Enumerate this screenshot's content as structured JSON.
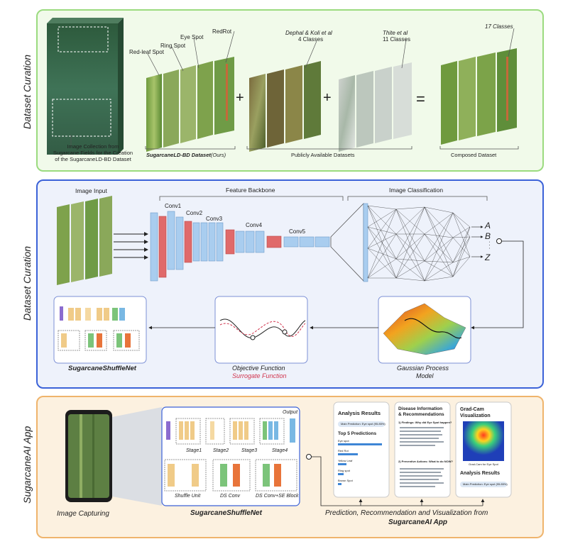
{
  "panel1": {
    "side_label": "Dataset Curation",
    "field_caption": [
      "Image Collection from",
      "Sugarcane Fields for the Creation",
      "of the SugarcaneLD-BD Dataset"
    ],
    "stack1_labels": [
      "RedRot",
      "Eye Spot",
      "Ring Spot",
      "Red-leaf Spot"
    ],
    "stack2_label_title": "Dephal & Koli et al",
    "stack2_label_classes": "4 Classes",
    "stack3_label_title": "Thite et al",
    "stack3_label_classes": "11 Classes",
    "stack4_label": "17 Classes",
    "caption_ours_bold": "SugarcaneLD-BD Dataset",
    "caption_ours_italic": "(Ours)",
    "caption_public": "Publicly Available Datasets",
    "caption_composed": "Composed Dataset",
    "plus": "+",
    "equals": "="
  },
  "panel2": {
    "side_label": "Dataset Curation",
    "image_input": "Image Input",
    "feature_backbone": "Feature Backbone",
    "image_classification": "Image Classification",
    "conv_labels": [
      "Conv1",
      "Conv2",
      "Conv3",
      "Conv4",
      "Conv5"
    ],
    "outputs": [
      "A",
      "B",
      "Z"
    ],
    "dots": ". . .",
    "net_title": "SugarcaneShuffleNet",
    "objective": "Objective Function",
    "surrogate": "Surrogate Function",
    "gp_line1": "Gaussian Process",
    "gp_line2": "Model"
  },
  "panel3": {
    "side_label": "SugarcaneAI App",
    "image_capturing": "Image Capturing",
    "net_title": "SugarcaneShuffleNet",
    "output_label": "Output",
    "stages": [
      "Stage1",
      "Stage2",
      "Stage3",
      "Stage4"
    ],
    "blocks": [
      "Shuffle Unit",
      "DS Conv",
      "DS Conv+SE Block"
    ],
    "prediction_line1": "Prediction, Recommendation and Visualization from",
    "prediction_line2": "SugarcaneAI App",
    "screen1": {
      "title": "Analysis Results",
      "pill": "Main Prediction: Eye spot (95.85%)",
      "sub": "Top 5 Predictions",
      "rows": [
        "Eye spot",
        "Red Rot",
        "Yellow Leaf",
        "Ring spot",
        "Brown Spot"
      ]
    },
    "screen2": {
      "title_line1": "Disease Information",
      "title_line2": "& Recommendations",
      "q1": "1) Findings: Why did Eye Spot happen?",
      "q2": "2) Preventive Actions: What to do NOW?"
    },
    "screen3": {
      "title_line1": "Grad-Cam",
      "title_line2": "Visualization",
      "caption": "Grad-Cam for Eye Spot",
      "sub": "Analysis Results",
      "pill": "Main Prediction: Eye spot (95.85%)"
    }
  },
  "colors": {
    "green_border": "#9bdb7f",
    "blue_border": "#3b62d8",
    "orange_border": "#efb46c",
    "conv_blue": "#a9cdef",
    "conv_red": "#e06a6a",
    "surrogate_red": "#d1344d"
  }
}
